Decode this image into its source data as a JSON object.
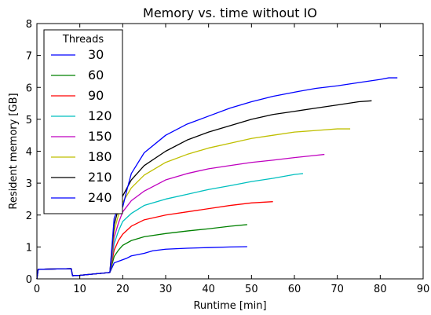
{
  "chart_data": {
    "type": "line",
    "title": "Memory vs. time without IO",
    "xlabel": "Runtime [min]",
    "ylabel": "Resident memory [GB]",
    "xlim": [
      0,
      90
    ],
    "ylim": [
      0,
      8
    ],
    "xticks": [
      0,
      10,
      20,
      30,
      40,
      50,
      60,
      70,
      80,
      90
    ],
    "yticks": [
      0,
      1,
      2,
      3,
      4,
      5,
      6,
      7,
      8
    ],
    "grid": false,
    "legend": {
      "title": "Threads",
      "placement": "top-left"
    },
    "series": [
      {
        "name": "30",
        "color": "#0000ff",
        "points": [
          [
            0,
            0
          ],
          [
            0.3,
            0.3
          ],
          [
            8,
            0.32
          ],
          [
            8.3,
            0.1
          ],
          [
            10,
            0.11
          ],
          [
            17,
            0.2
          ],
          [
            18,
            0.5
          ],
          [
            19,
            0.55
          ],
          [
            20,
            0.6
          ],
          [
            21,
            0.65
          ],
          [
            22,
            0.72
          ],
          [
            25,
            0.8
          ],
          [
            27,
            0.88
          ],
          [
            30,
            0.93
          ],
          [
            35,
            0.96
          ],
          [
            40,
            0.98
          ],
          [
            45,
            1.0
          ],
          [
            49,
            1.01
          ]
        ]
      },
      {
        "name": "60",
        "color": "#008000",
        "points": [
          [
            0,
            0
          ],
          [
            0.3,
            0.3
          ],
          [
            8,
            0.32
          ],
          [
            8.3,
            0.1
          ],
          [
            10,
            0.11
          ],
          [
            17,
            0.2
          ],
          [
            18,
            0.7
          ],
          [
            19,
            0.9
          ],
          [
            20,
            1.05
          ],
          [
            22,
            1.2
          ],
          [
            25,
            1.32
          ],
          [
            30,
            1.42
          ],
          [
            35,
            1.5
          ],
          [
            40,
            1.57
          ],
          [
            45,
            1.65
          ],
          [
            49,
            1.7
          ]
        ]
      },
      {
        "name": "90",
        "color": "#ff0000",
        "points": [
          [
            0,
            0
          ],
          [
            0.3,
            0.3
          ],
          [
            8,
            0.32
          ],
          [
            8.3,
            0.1
          ],
          [
            10,
            0.11
          ],
          [
            17,
            0.2
          ],
          [
            18,
            0.9
          ],
          [
            19,
            1.2
          ],
          [
            20,
            1.4
          ],
          [
            22,
            1.65
          ],
          [
            25,
            1.85
          ],
          [
            30,
            2.0
          ],
          [
            35,
            2.1
          ],
          [
            40,
            2.2
          ],
          [
            45,
            2.3
          ],
          [
            50,
            2.38
          ],
          [
            55,
            2.42
          ]
        ]
      },
      {
        "name": "120",
        "color": "#00bfbf",
        "points": [
          [
            0,
            0
          ],
          [
            0.3,
            0.3
          ],
          [
            8,
            0.32
          ],
          [
            8.3,
            0.1
          ],
          [
            10,
            0.11
          ],
          [
            17,
            0.2
          ],
          [
            18,
            1.1
          ],
          [
            19,
            1.5
          ],
          [
            20,
            1.8
          ],
          [
            22,
            2.05
          ],
          [
            25,
            2.3
          ],
          [
            30,
            2.5
          ],
          [
            35,
            2.65
          ],
          [
            40,
            2.8
          ],
          [
            45,
            2.92
          ],
          [
            50,
            3.05
          ],
          [
            55,
            3.15
          ],
          [
            60,
            3.27
          ],
          [
            62,
            3.3
          ]
        ]
      },
      {
        "name": "150",
        "color": "#bf00bf",
        "points": [
          [
            0,
            0
          ],
          [
            0.3,
            0.3
          ],
          [
            8,
            0.32
          ],
          [
            8.3,
            0.1
          ],
          [
            10,
            0.11
          ],
          [
            17,
            0.2
          ],
          [
            18,
            1.3
          ],
          [
            19,
            1.75
          ],
          [
            20,
            2.1
          ],
          [
            22,
            2.45
          ],
          [
            25,
            2.75
          ],
          [
            30,
            3.1
          ],
          [
            35,
            3.3
          ],
          [
            40,
            3.45
          ],
          [
            45,
            3.55
          ],
          [
            50,
            3.65
          ],
          [
            55,
            3.72
          ],
          [
            60,
            3.8
          ],
          [
            65,
            3.87
          ],
          [
            67,
            3.9
          ]
        ]
      },
      {
        "name": "180",
        "color": "#bfbf00",
        "points": [
          [
            0,
            0
          ],
          [
            0.3,
            0.3
          ],
          [
            8,
            0.32
          ],
          [
            8.3,
            0.1
          ],
          [
            10,
            0.11
          ],
          [
            17,
            0.2
          ],
          [
            18,
            1.5
          ],
          [
            19,
            2.0
          ],
          [
            20,
            2.4
          ],
          [
            22,
            2.85
          ],
          [
            25,
            3.25
          ],
          [
            30,
            3.65
          ],
          [
            35,
            3.9
          ],
          [
            40,
            4.1
          ],
          [
            45,
            4.25
          ],
          [
            50,
            4.4
          ],
          [
            55,
            4.5
          ],
          [
            60,
            4.6
          ],
          [
            65,
            4.65
          ],
          [
            70,
            4.7
          ],
          [
            73,
            4.7
          ]
        ]
      },
      {
        "name": "210",
        "color": "#000000",
        "points": [
          [
            0,
            0
          ],
          [
            0.3,
            0.3
          ],
          [
            8,
            0.32
          ],
          [
            8.3,
            0.1
          ],
          [
            10,
            0.11
          ],
          [
            17,
            0.2
          ],
          [
            18,
            1.7
          ],
          [
            19,
            2.2
          ],
          [
            20,
            2.6
          ],
          [
            22,
            3.1
          ],
          [
            25,
            3.55
          ],
          [
            30,
            4.0
          ],
          [
            35,
            4.35
          ],
          [
            40,
            4.6
          ],
          [
            45,
            4.8
          ],
          [
            50,
            5.0
          ],
          [
            55,
            5.15
          ],
          [
            60,
            5.25
          ],
          [
            65,
            5.35
          ],
          [
            70,
            5.45
          ],
          [
            75,
            5.55
          ],
          [
            78,
            5.58
          ]
        ]
      },
      {
        "name": "240",
        "color": "#0000ff",
        "points": [
          [
            0,
            0
          ],
          [
            0.3,
            0.3
          ],
          [
            8,
            0.32
          ],
          [
            8.3,
            0.1
          ],
          [
            10,
            0.11
          ],
          [
            17,
            0.2
          ],
          [
            18,
            1.9
          ],
          [
            19,
            2.25
          ],
          [
            20,
            2.25
          ],
          [
            21,
            2.8
          ],
          [
            22,
            3.3
          ],
          [
            25,
            3.95
          ],
          [
            30,
            4.5
          ],
          [
            35,
            4.85
          ],
          [
            40,
            5.1
          ],
          [
            45,
            5.35
          ],
          [
            50,
            5.55
          ],
          [
            55,
            5.72
          ],
          [
            60,
            5.85
          ],
          [
            65,
            5.97
          ],
          [
            70,
            6.05
          ],
          [
            75,
            6.15
          ],
          [
            80,
            6.25
          ],
          [
            82,
            6.3
          ],
          [
            84,
            6.3
          ]
        ]
      }
    ]
  }
}
